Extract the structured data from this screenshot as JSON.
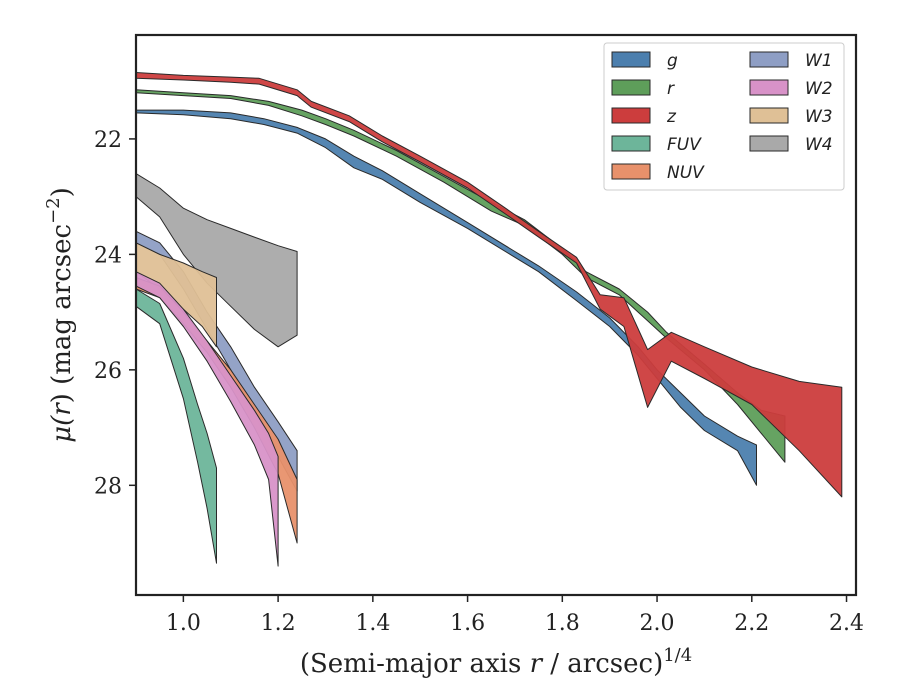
{
  "chart_data": {
    "type": "area",
    "xlabel_prefix": "(Semi-major axis ",
    "xlabel_var": "r",
    "xlabel_suffix": " / arcsec)",
    "xlabel_exp": "1/4",
    "ylabel_mu": "μ(",
    "ylabel_var": "r",
    "ylabel_mid": ") (mag arcsec",
    "ylabel_exp": "−2",
    "ylabel_end": ")",
    "xlim": [
      0.9,
      2.42
    ],
    "ylim": [
      29.9,
      20.2
    ],
    "y_inverted": true,
    "xticks": [
      "1.0",
      "1.2",
      "1.4",
      "1.6",
      "1.8",
      "2.0",
      "2.2",
      "2.4"
    ],
    "xtick_values": [
      1.0,
      1.2,
      1.4,
      1.6,
      1.8,
      2.0,
      2.2,
      2.4
    ],
    "yticks": [
      "22",
      "24",
      "26",
      "28"
    ],
    "ytick_values": [
      22,
      24,
      26,
      28
    ],
    "grid": false,
    "legend_position": "top-right",
    "legend_columns": 2,
    "series": [
      {
        "name": "W4",
        "color": "#a9a9a9",
        "upper": [
          [
            0.9,
            22.6
          ],
          [
            0.95,
            22.85
          ],
          [
            1.0,
            23.2
          ],
          [
            1.05,
            23.4
          ],
          [
            1.1,
            23.55
          ],
          [
            1.15,
            23.7
          ],
          [
            1.2,
            23.85
          ],
          [
            1.24,
            23.95
          ]
        ],
        "lower": [
          [
            0.9,
            23.0
          ],
          [
            0.95,
            23.35
          ],
          [
            1.0,
            24.0
          ],
          [
            1.05,
            24.5
          ],
          [
            1.1,
            24.9
          ],
          [
            1.15,
            25.3
          ],
          [
            1.2,
            25.6
          ],
          [
            1.24,
            25.4
          ]
        ]
      },
      {
        "name": "W1",
        "color": "#8e9ec4",
        "upper": [
          [
            0.9,
            23.6
          ],
          [
            0.95,
            23.8
          ],
          [
            1.0,
            24.3
          ],
          [
            1.05,
            25.0
          ],
          [
            1.1,
            25.6
          ],
          [
            1.15,
            26.3
          ],
          [
            1.2,
            26.9
          ],
          [
            1.24,
            27.4
          ]
        ],
        "lower": [
          [
            0.9,
            23.8
          ],
          [
            0.95,
            24.0
          ],
          [
            1.0,
            24.6
          ],
          [
            1.05,
            25.3
          ],
          [
            1.1,
            26.0
          ],
          [
            1.15,
            26.8
          ],
          [
            1.2,
            27.5
          ],
          [
            1.24,
            28.1
          ]
        ]
      },
      {
        "name": "W3",
        "color": "#dfc096",
        "upper": [
          [
            0.9,
            23.8
          ],
          [
            0.95,
            24.0
          ],
          [
            1.0,
            24.15
          ],
          [
            1.04,
            24.3
          ],
          [
            1.07,
            24.4
          ]
        ],
        "lower": [
          [
            0.9,
            24.3
          ],
          [
            0.95,
            24.6
          ],
          [
            1.0,
            24.95
          ],
          [
            1.04,
            25.25
          ],
          [
            1.07,
            25.6
          ]
        ]
      },
      {
        "name": "NUV",
        "color": "#e8916b",
        "upper": [
          [
            0.9,
            24.4
          ],
          [
            0.95,
            24.55
          ],
          [
            1.0,
            25.0
          ],
          [
            1.05,
            25.5
          ],
          [
            1.1,
            26.0
          ],
          [
            1.15,
            26.6
          ],
          [
            1.2,
            27.2
          ],
          [
            1.24,
            27.9
          ]
        ],
        "lower": [
          [
            0.9,
            24.6
          ],
          [
            0.95,
            24.75
          ],
          [
            1.0,
            25.2
          ],
          [
            1.05,
            25.7
          ],
          [
            1.1,
            26.3
          ],
          [
            1.15,
            27.0
          ],
          [
            1.2,
            27.8
          ],
          [
            1.24,
            29.0
          ]
        ]
      },
      {
        "name": "W2",
        "color": "#d892c8",
        "upper": [
          [
            0.9,
            24.3
          ],
          [
            0.95,
            24.5
          ],
          [
            1.0,
            24.95
          ],
          [
            1.05,
            25.5
          ],
          [
            1.1,
            26.1
          ],
          [
            1.15,
            26.7
          ],
          [
            1.18,
            27.1
          ],
          [
            1.2,
            27.5
          ]
        ],
        "lower": [
          [
            0.9,
            24.55
          ],
          [
            0.95,
            24.75
          ],
          [
            1.0,
            25.25
          ],
          [
            1.05,
            25.85
          ],
          [
            1.1,
            26.55
          ],
          [
            1.15,
            27.3
          ],
          [
            1.18,
            27.9
          ],
          [
            1.2,
            29.4
          ]
        ]
      },
      {
        "name": "FUV",
        "color": "#6db59a",
        "upper": [
          [
            0.9,
            24.6
          ],
          [
            0.95,
            24.85
          ],
          [
            1.0,
            25.8
          ],
          [
            1.03,
            26.6
          ],
          [
            1.05,
            27.1
          ],
          [
            1.07,
            27.7
          ]
        ],
        "lower": [
          [
            0.9,
            24.9
          ],
          [
            0.95,
            25.2
          ],
          [
            1.0,
            26.5
          ],
          [
            1.03,
            27.6
          ],
          [
            1.05,
            28.4
          ],
          [
            1.07,
            29.35
          ]
        ]
      },
      {
        "name": "g",
        "color": "#4c7fae",
        "upper": [
          [
            0.9,
            21.5
          ],
          [
            1.0,
            21.5
          ],
          [
            1.1,
            21.55
          ],
          [
            1.17,
            21.65
          ],
          [
            1.24,
            21.8
          ],
          [
            1.3,
            22.0
          ],
          [
            1.36,
            22.3
          ],
          [
            1.42,
            22.55
          ],
          [
            1.5,
            22.95
          ],
          [
            1.6,
            23.45
          ],
          [
            1.7,
            23.95
          ],
          [
            1.75,
            24.2
          ],
          [
            1.83,
            24.65
          ],
          [
            1.9,
            25.1
          ],
          [
            1.96,
            25.6
          ],
          [
            2.0,
            26.0
          ],
          [
            2.05,
            26.4
          ],
          [
            2.1,
            26.8
          ],
          [
            2.17,
            27.15
          ],
          [
            2.21,
            27.3
          ]
        ],
        "lower": [
          [
            0.9,
            21.55
          ],
          [
            1.0,
            21.58
          ],
          [
            1.1,
            21.65
          ],
          [
            1.17,
            21.75
          ],
          [
            1.24,
            21.9
          ],
          [
            1.3,
            22.15
          ],
          [
            1.36,
            22.5
          ],
          [
            1.42,
            22.7
          ],
          [
            1.5,
            23.1
          ],
          [
            1.6,
            23.55
          ],
          [
            1.7,
            24.05
          ],
          [
            1.75,
            24.3
          ],
          [
            1.83,
            24.8
          ],
          [
            1.9,
            25.25
          ],
          [
            1.96,
            25.75
          ],
          [
            2.0,
            26.15
          ],
          [
            2.05,
            26.65
          ],
          [
            2.1,
            27.05
          ],
          [
            2.17,
            27.4
          ],
          [
            2.21,
            28.0
          ]
        ]
      },
      {
        "name": "r",
        "color": "#5e9e5a",
        "upper": [
          [
            0.9,
            21.15
          ],
          [
            1.0,
            21.2
          ],
          [
            1.1,
            21.25
          ],
          [
            1.18,
            21.35
          ],
          [
            1.25,
            21.5
          ],
          [
            1.3,
            21.65
          ],
          [
            1.36,
            21.85
          ],
          [
            1.45,
            22.2
          ],
          [
            1.55,
            22.65
          ],
          [
            1.65,
            23.1
          ],
          [
            1.72,
            23.4
          ],
          [
            1.8,
            23.9
          ],
          [
            1.85,
            24.3
          ],
          [
            1.92,
            24.6
          ],
          [
            1.98,
            25.0
          ],
          [
            2.02,
            25.35
          ],
          [
            2.1,
            25.9
          ],
          [
            2.17,
            26.4
          ],
          [
            2.22,
            26.7
          ],
          [
            2.27,
            26.8
          ]
        ],
        "lower": [
          [
            0.9,
            21.2
          ],
          [
            1.0,
            21.25
          ],
          [
            1.1,
            21.3
          ],
          [
            1.18,
            21.42
          ],
          [
            1.25,
            21.6
          ],
          [
            1.3,
            21.75
          ],
          [
            1.36,
            21.95
          ],
          [
            1.45,
            22.3
          ],
          [
            1.55,
            22.75
          ],
          [
            1.65,
            23.25
          ],
          [
            1.72,
            23.5
          ],
          [
            1.8,
            24.0
          ],
          [
            1.85,
            24.4
          ],
          [
            1.92,
            24.7
          ],
          [
            1.98,
            25.15
          ],
          [
            2.02,
            25.45
          ],
          [
            2.1,
            26.0
          ],
          [
            2.17,
            26.6
          ],
          [
            2.22,
            27.1
          ],
          [
            2.27,
            27.6
          ]
        ]
      },
      {
        "name": "z",
        "color": "#cc3d3d",
        "upper": [
          [
            0.9,
            20.85
          ],
          [
            1.0,
            20.9
          ],
          [
            1.1,
            20.93
          ],
          [
            1.16,
            20.95
          ],
          [
            1.24,
            21.15
          ],
          [
            1.27,
            21.35
          ],
          [
            1.35,
            21.6
          ],
          [
            1.42,
            21.95
          ],
          [
            1.5,
            22.3
          ],
          [
            1.6,
            22.75
          ],
          [
            1.68,
            23.2
          ],
          [
            1.75,
            23.6
          ],
          [
            1.83,
            24.05
          ],
          [
            1.88,
            24.7
          ],
          [
            1.93,
            24.75
          ],
          [
            1.98,
            25.65
          ],
          [
            2.03,
            25.35
          ],
          [
            2.1,
            25.6
          ],
          [
            2.2,
            25.95
          ],
          [
            2.3,
            26.2
          ],
          [
            2.39,
            26.3
          ]
        ],
        "lower": [
          [
            0.9,
            20.95
          ],
          [
            1.0,
            20.98
          ],
          [
            1.1,
            21.02
          ],
          [
            1.16,
            21.05
          ],
          [
            1.24,
            21.25
          ],
          [
            1.27,
            21.45
          ],
          [
            1.35,
            21.7
          ],
          [
            1.42,
            22.05
          ],
          [
            1.5,
            22.4
          ],
          [
            1.6,
            22.85
          ],
          [
            1.68,
            23.3
          ],
          [
            1.75,
            23.7
          ],
          [
            1.83,
            24.15
          ],
          [
            1.88,
            24.95
          ],
          [
            1.93,
            25.25
          ],
          [
            1.98,
            26.65
          ],
          [
            2.03,
            25.85
          ],
          [
            2.1,
            26.15
          ],
          [
            2.2,
            26.6
          ],
          [
            2.3,
            27.4
          ],
          [
            2.39,
            28.2
          ]
        ]
      }
    ],
    "legend": {
      "col1": [
        {
          "label": "g",
          "color": "#4c7fae"
        },
        {
          "label": "r",
          "color": "#5e9e5a"
        },
        {
          "label": "z",
          "color": "#cc3d3d"
        },
        {
          "label": "FUV",
          "color": "#6db59a"
        },
        {
          "label": "NUV",
          "color": "#e8916b"
        }
      ],
      "col2": [
        {
          "label": "W1",
          "color": "#8e9ec4"
        },
        {
          "label": "W2",
          "color": "#d892c8"
        },
        {
          "label": "W3",
          "color": "#dfc096"
        },
        {
          "label": "W4",
          "color": "#a9a9a9"
        }
      ]
    }
  }
}
